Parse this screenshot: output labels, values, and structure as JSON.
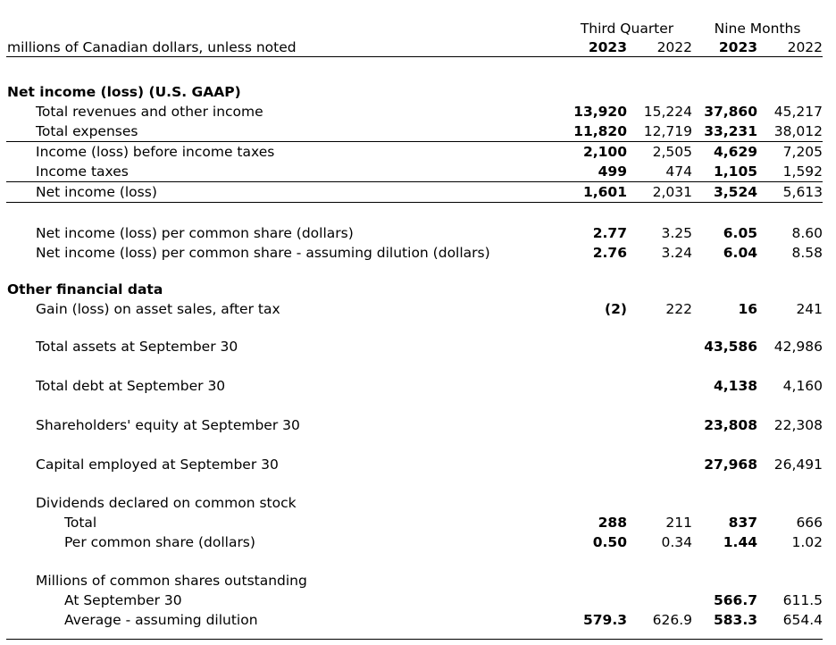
{
  "styles": {
    "background": "#ffffff",
    "text_color": "#000000",
    "rule_color": "#000000"
  },
  "header": {
    "unit_note": "millions of Canadian dollars, unless noted",
    "group_third_quarter": "Third Quarter",
    "group_nine_months": "Nine Months",
    "years": [
      {
        "text": "2023",
        "bold": true
      },
      {
        "text": "2022",
        "bold": false
      },
      {
        "text": "2023",
        "bold": true
      },
      {
        "text": "2022",
        "bold": false
      }
    ]
  },
  "table": {
    "value_bold_columns": [
      0,
      2
    ],
    "rows": [
      {
        "label": "Net income (loss) (U.S. GAAP)",
        "indent": 0,
        "section": true,
        "values": [
          "",
          "",
          "",
          ""
        ]
      },
      {
        "label": "Total revenues and other income",
        "indent": 1,
        "values": [
          "13,920",
          "15,224",
          "37,860",
          "45,217"
        ]
      },
      {
        "label": "Total expenses",
        "indent": 1,
        "values": [
          "11,820",
          "12,719",
          "33,231",
          "38,012"
        ],
        "rule_below": true
      },
      {
        "label": "Income (loss) before income taxes",
        "indent": 1,
        "values": [
          "2,100",
          "2,505",
          "4,629",
          "7,205"
        ]
      },
      {
        "label": "Income taxes",
        "indent": 1,
        "values": [
          "499",
          "474",
          "1,105",
          "1,592"
        ],
        "rule_below": true
      },
      {
        "label": "Net income (loss)",
        "indent": 1,
        "values": [
          "1,601",
          "2,031",
          "3,524",
          "5,613"
        ],
        "rule_below": true
      },
      {
        "spacer": 24
      },
      {
        "label": "Net income (loss) per common share (dollars)",
        "indent": 1,
        "values": [
          "2.77",
          "3.25",
          "6.05",
          "8.60"
        ]
      },
      {
        "label": "Net income (loss) per common share - assuming dilution (dollars)",
        "indent": 1,
        "values": [
          "2.76",
          "3.24",
          "6.04",
          "8.58"
        ]
      },
      {
        "spacer": 19
      },
      {
        "label": "Other financial data",
        "indent": 0,
        "section": true,
        "values": [
          "",
          "",
          "",
          ""
        ]
      },
      {
        "label": "Gain (loss) on asset sales, after tax",
        "indent": 1,
        "values": [
          "(2)",
          "222",
          "16",
          "241"
        ]
      },
      {
        "spacer": 20
      },
      {
        "label": "Total assets at September 30",
        "indent": 1,
        "values": [
          "",
          "",
          "43,586",
          "42,986"
        ]
      },
      {
        "spacer": 22
      },
      {
        "label": "Total debt at September 30",
        "indent": 1,
        "values": [
          "",
          "",
          "4,138",
          "4,160"
        ]
      },
      {
        "spacer": 22
      },
      {
        "label": "Shareholders' equity at September 30",
        "indent": 1,
        "values": [
          "",
          "",
          "23,808",
          "22,308"
        ]
      },
      {
        "spacer": 22
      },
      {
        "label": "Capital employed at September 30",
        "indent": 1,
        "values": [
          "",
          "",
          "27,968",
          "26,491"
        ]
      },
      {
        "spacer": 21
      },
      {
        "label": "Dividends declared on common stock",
        "indent": 1,
        "values": [
          "",
          "",
          "",
          ""
        ]
      },
      {
        "label": "Total",
        "indent": 2,
        "values": [
          "288",
          "211",
          "837",
          "666"
        ]
      },
      {
        "label": "Per common share (dollars)",
        "indent": 2,
        "values": [
          "0.50",
          "0.34",
          "1.44",
          "1.02"
        ]
      },
      {
        "spacer": 21
      },
      {
        "label": "Millions of common shares outstanding",
        "indent": 1,
        "values": [
          "",
          "",
          "",
          ""
        ]
      },
      {
        "label": "At September 30",
        "indent": 2,
        "values": [
          "",
          "",
          "566.7",
          "611.5"
        ]
      },
      {
        "label": "Average - assuming dilution",
        "indent": 2,
        "values": [
          "579.3",
          "626.9",
          "583.3",
          "654.4"
        ]
      },
      {
        "spacer": 10,
        "rule_below": true
      }
    ]
  }
}
